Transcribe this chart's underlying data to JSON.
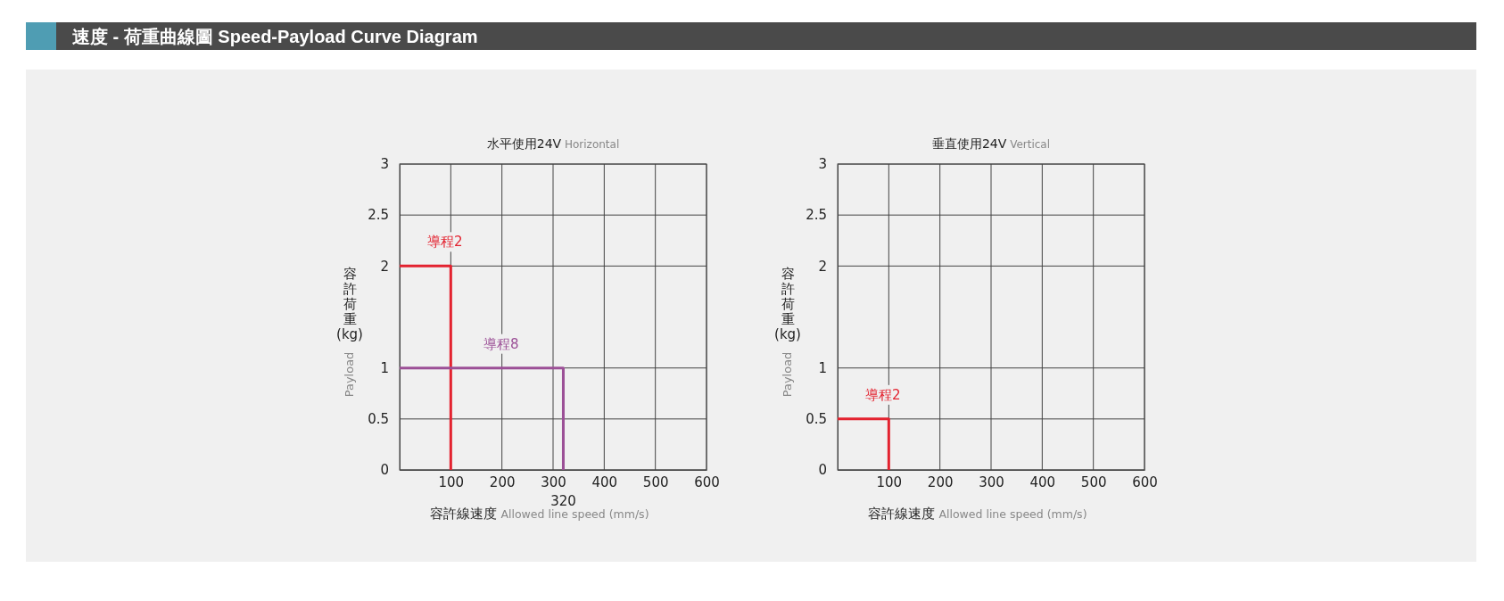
{
  "chart_data": [
    {
      "type": "line",
      "title": "水平使用24V Horizontal",
      "xlabel": "容許線速度 Allowed line speed (mm/s)",
      "ylabel": "容許荷重(kg) Payload",
      "annotations": [
        "速度 - 荷重曲線圖 Speed-Payload Curve Diagram",
        {
          "text": "320",
          "x": 320,
          "y": 0
        }
      ],
      "xlim": [
        0,
        600
      ],
      "xticks": [
        100,
        200,
        300,
        400,
        500,
        600
      ],
      "ylim": [
        0,
        3
      ],
      "yticks": [
        0,
        0.5,
        1,
        2,
        2.5,
        3
      ],
      "grid": true,
      "marker": "none",
      "series": [
        {
          "name": "導程2",
          "color": "#e3222f",
          "x": [
            0,
            100,
            100
          ],
          "values": [
            2,
            2,
            0
          ]
        },
        {
          "name": "導程8",
          "color": "#9b4f96",
          "x": [
            0,
            320,
            320
          ],
          "values": [
            1,
            1,
            0
          ]
        }
      ]
    },
    {
      "type": "line",
      "title": "垂直使用24V Vertical",
      "xlabel": "容許線速度 Allowed line speed (mm/s)",
      "ylabel": "容許荷重(kg) Payload",
      "xlim": [
        0,
        600
      ],
      "xticks": [
        100,
        200,
        300,
        400,
        500,
        600
      ],
      "ylim": [
        0,
        3
      ],
      "yticks": [
        0,
        0.5,
        1,
        2,
        2.5,
        3
      ],
      "grid": true,
      "marker": "none",
      "series": [
        {
          "name": "導程2",
          "color": "#e3222f",
          "x": [
            0,
            100,
            100
          ],
          "values": [
            0.5,
            0.5,
            0
          ]
        }
      ]
    }
  ]
}
